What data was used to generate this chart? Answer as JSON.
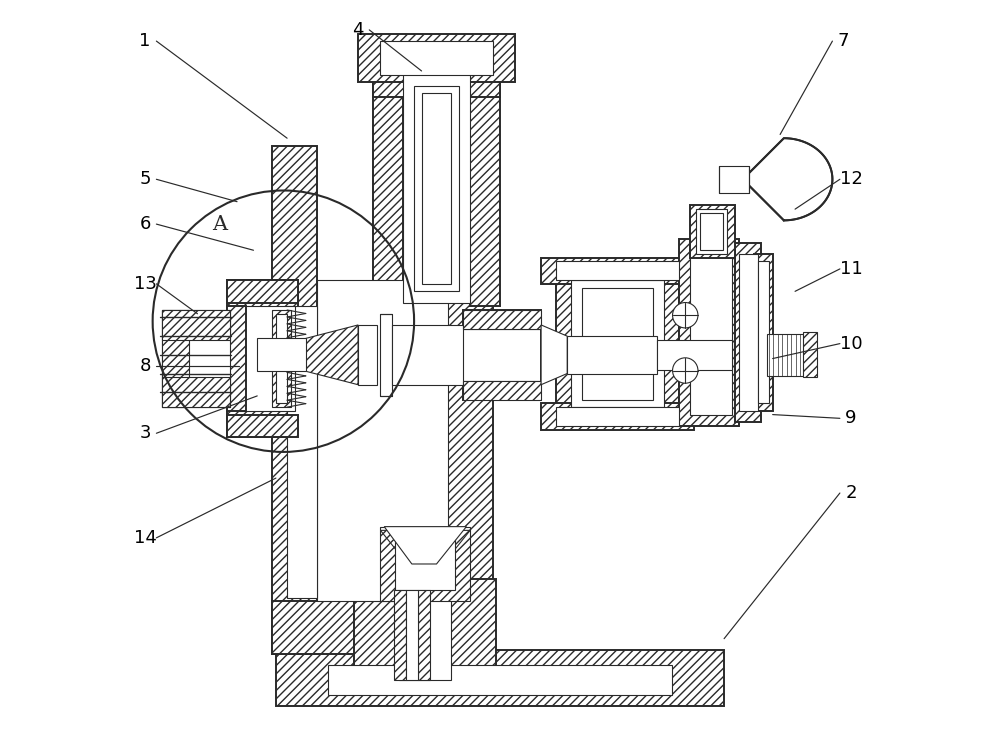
{
  "bg_color": "#ffffff",
  "lc": "#2a2a2a",
  "lw_main": 1.4,
  "lw_thin": 0.8,
  "figsize": [
    10.0,
    7.47
  ],
  "dpi": 100,
  "annotations": {
    "1": {
      "label": [
        0.025,
        0.945
      ],
      "point": [
        0.215,
        0.815
      ]
    },
    "4": {
      "label": [
        0.31,
        0.96
      ],
      "point": [
        0.395,
        0.905
      ]
    },
    "7": {
      "label": [
        0.96,
        0.945
      ],
      "point": [
        0.875,
        0.82
      ]
    },
    "5": {
      "label": [
        0.025,
        0.76
      ],
      "point": [
        0.148,
        0.73
      ]
    },
    "6": {
      "label": [
        0.025,
        0.7
      ],
      "point": [
        0.17,
        0.665
      ]
    },
    "12": {
      "label": [
        0.97,
        0.76
      ],
      "point": [
        0.895,
        0.72
      ]
    },
    "13": {
      "label": [
        0.025,
        0.62
      ],
      "point": [
        0.095,
        0.58
      ]
    },
    "8": {
      "label": [
        0.025,
        0.51
      ],
      "point": [
        0.15,
        0.51
      ]
    },
    "3": {
      "label": [
        0.025,
        0.42
      ],
      "point": [
        0.175,
        0.47
      ]
    },
    "11": {
      "label": [
        0.97,
        0.64
      ],
      "point": [
        0.895,
        0.61
      ]
    },
    "10": {
      "label": [
        0.97,
        0.54
      ],
      "point": [
        0.865,
        0.52
      ]
    },
    "9": {
      "label": [
        0.97,
        0.44
      ],
      "point": [
        0.865,
        0.445
      ]
    },
    "2": {
      "label": [
        0.97,
        0.34
      ],
      "point": [
        0.8,
        0.145
      ]
    },
    "14": {
      "label": [
        0.025,
        0.28
      ],
      "point": [
        0.2,
        0.36
      ]
    }
  },
  "circle_A": [
    0.21,
    0.57,
    0.175
  ]
}
